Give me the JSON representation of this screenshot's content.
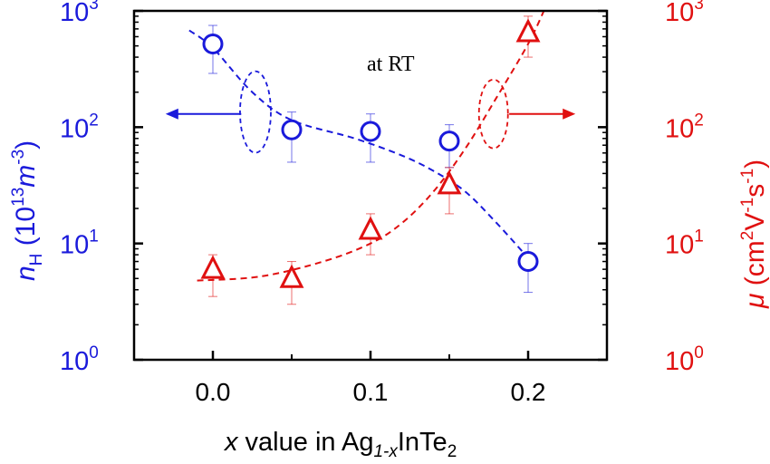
{
  "chart_data": {
    "type": "scatter",
    "title": "",
    "annotation": "at RT",
    "x_axis": {
      "label_parts": [
        "x",
        " value in Ag",
        "1-x",
        "InTe",
        "2"
      ],
      "range": [
        -0.05,
        0.25
      ],
      "ticks": [
        0.0,
        0.1,
        0.2
      ],
      "tick_labels": [
        "0.0",
        "0.1",
        "0.2"
      ]
    },
    "y_left": {
      "label_parts": [
        "n",
        "H",
        " (10",
        "13",
        "m",
        "-3",
        ")"
      ],
      "scale": "log",
      "range": [
        1,
        1000
      ],
      "ticks": [
        1,
        10,
        100,
        1000
      ],
      "tick_exponents": [
        "0",
        "1",
        "2",
        "3"
      ],
      "tick_base": "10",
      "color": "#1a1adb"
    },
    "y_right": {
      "label_parts": [
        "μ",
        " (cm",
        "2",
        "V",
        "-1",
        "s",
        "-1",
        ")"
      ],
      "scale": "log",
      "range": [
        1,
        1000
      ],
      "ticks": [
        1,
        10,
        100,
        1000
      ],
      "tick_exponents": [
        "0",
        "1",
        "2",
        "3"
      ],
      "tick_base": "10",
      "color": "#e01010"
    },
    "series": [
      {
        "axis": "left",
        "marker": "circle",
        "color": "#1a1adb",
        "x": [
          0.0,
          0.05,
          0.1,
          0.15,
          0.2
        ],
        "y": [
          520,
          95,
          92,
          76,
          7
        ],
        "err_low": [
          290,
          50,
          50,
          45,
          3.8
        ],
        "err_high": [
          750,
          135,
          130,
          105,
          10
        ],
        "fit": [
          [
            -0.015,
            680
          ],
          [
            0.0,
            480
          ],
          [
            0.025,
            200
          ],
          [
            0.05,
            115
          ],
          [
            0.09,
            80
          ],
          [
            0.12,
            57
          ],
          [
            0.14,
            42
          ],
          [
            0.16,
            28
          ],
          [
            0.18,
            15
          ],
          [
            0.2,
            7.5
          ]
        ]
      },
      {
        "axis": "right",
        "marker": "triangle",
        "color": "#e01010",
        "x": [
          0.0,
          0.05,
          0.1,
          0.15,
          0.2
        ],
        "y": [
          6,
          5,
          13,
          32,
          650
        ],
        "err_low": [
          3.5,
          3,
          8,
          18,
          400
        ],
        "err_high": [
          8,
          7,
          18,
          45,
          900
        ],
        "fit": [
          [
            -0.01,
            4.8
          ],
          [
            0.03,
            5.2
          ],
          [
            0.07,
            7
          ],
          [
            0.1,
            10
          ],
          [
            0.12,
            15
          ],
          [
            0.14,
            28
          ],
          [
            0.16,
            65
          ],
          [
            0.18,
            180
          ],
          [
            0.2,
            520
          ],
          [
            0.21,
            1000
          ]
        ]
      }
    ],
    "arrows": [
      {
        "direction": "left",
        "color": "#1a1adb"
      },
      {
        "direction": "right",
        "color": "#e01010"
      }
    ]
  }
}
